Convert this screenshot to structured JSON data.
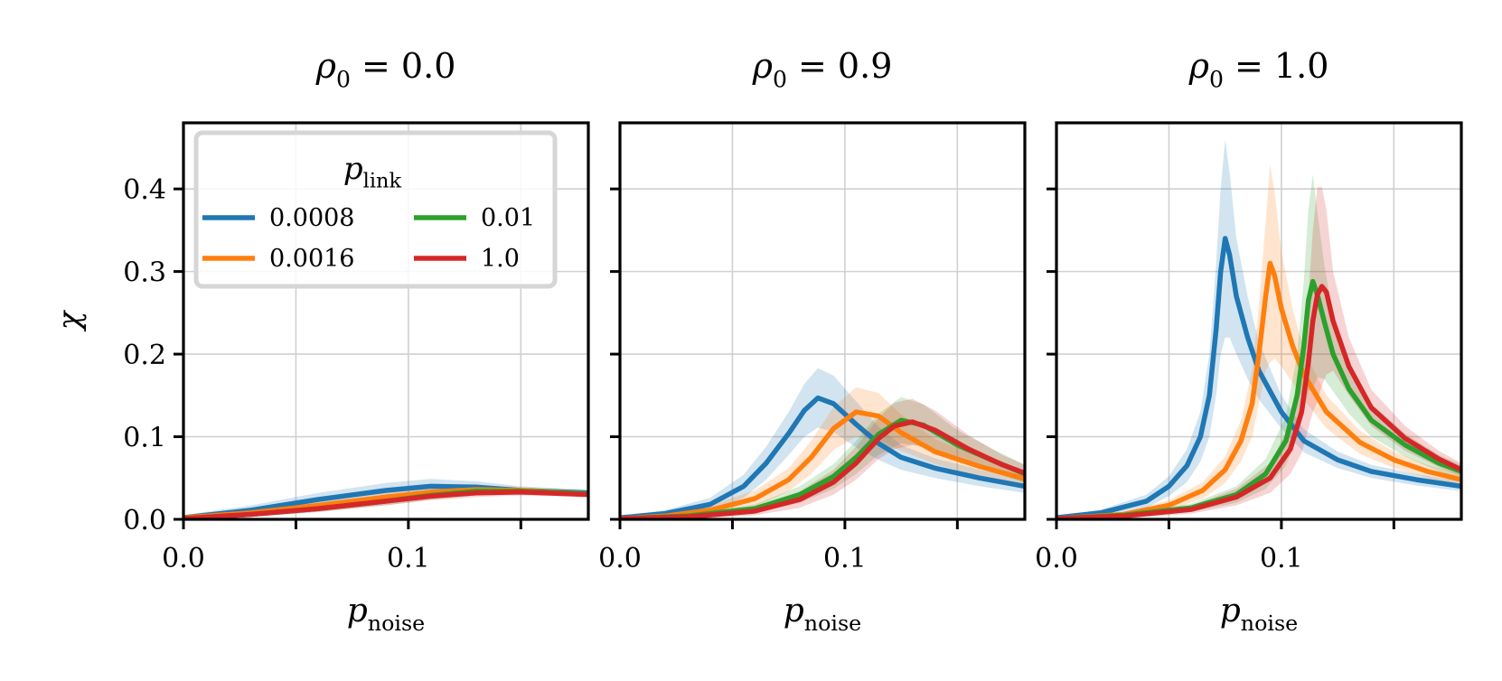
{
  "chart_data": [
    {
      "type": "line",
      "title": "ρ0 = 0.0",
      "title_parts": {
        "var": "ρ",
        "sub": "0",
        "rest": " = 0.0"
      },
      "xlabel": {
        "var": "p",
        "sub": "noise"
      },
      "ylabel": "χ",
      "xlim": [
        0.0,
        0.18
      ],
      "ylim": [
        0.0,
        0.48
      ],
      "xticks": [
        0.0,
        0.05,
        0.1,
        0.15
      ],
      "xtick_labels": [
        "0.0",
        "",
        "0.1",
        ""
      ],
      "yticks": [
        0.0,
        0.1,
        0.2,
        0.3,
        0.4
      ],
      "ytick_labels": [
        "0.0",
        "0.1",
        "0.2",
        "0.3",
        "0.4"
      ],
      "grid": true,
      "legend": "top-left",
      "series": [
        {
          "name": "0.0008",
          "x": [
            0.0,
            0.03,
            0.06,
            0.09,
            0.11,
            0.13,
            0.15,
            0.18
          ],
          "y": [
            0.002,
            0.011,
            0.024,
            0.035,
            0.04,
            0.039,
            0.035,
            0.032
          ],
          "band": [
            0.003,
            0.006,
            0.008,
            0.009,
            0.009,
            0.007,
            0.005,
            0.004
          ]
        },
        {
          "name": "0.0016",
          "x": [
            0.0,
            0.03,
            0.06,
            0.09,
            0.11,
            0.13,
            0.15,
            0.18
          ],
          "y": [
            0.002,
            0.008,
            0.017,
            0.027,
            0.033,
            0.036,
            0.035,
            0.031
          ],
          "band": [
            0.002,
            0.004,
            0.005,
            0.006,
            0.006,
            0.005,
            0.004,
            0.003
          ]
        },
        {
          "name": "0.01",
          "x": [
            0.0,
            0.03,
            0.06,
            0.09,
            0.11,
            0.13,
            0.15,
            0.18
          ],
          "y": [
            0.001,
            0.006,
            0.013,
            0.022,
            0.029,
            0.034,
            0.034,
            0.031
          ],
          "band": [
            0.002,
            0.003,
            0.004,
            0.005,
            0.005,
            0.005,
            0.004,
            0.003
          ]
        },
        {
          "name": "1.0",
          "x": [
            0.0,
            0.03,
            0.06,
            0.09,
            0.11,
            0.13,
            0.15,
            0.18
          ],
          "y": [
            0.001,
            0.006,
            0.013,
            0.022,
            0.028,
            0.032,
            0.033,
            0.03
          ],
          "band": [
            0.002,
            0.003,
            0.004,
            0.005,
            0.005,
            0.005,
            0.004,
            0.003
          ]
        }
      ]
    },
    {
      "type": "line",
      "title": "ρ0 = 0.9",
      "title_parts": {
        "var": "ρ",
        "sub": "0",
        "rest": " = 0.9"
      },
      "xlabel": {
        "var": "p",
        "sub": "noise"
      },
      "ylabel": "",
      "xlim": [
        0.0,
        0.18
      ],
      "ylim": [
        0.0,
        0.48
      ],
      "xticks": [
        0.0,
        0.05,
        0.1,
        0.15
      ],
      "xtick_labels": [
        "0.0",
        "",
        "0.1",
        ""
      ],
      "yticks": [
        0.0,
        0.1,
        0.2,
        0.3,
        0.4
      ],
      "ytick_labels": [
        "",
        "",
        "",
        "",
        ""
      ],
      "grid": true,
      "series": [
        {
          "name": "0.0008",
          "x": [
            0.0,
            0.02,
            0.04,
            0.055,
            0.065,
            0.075,
            0.082,
            0.088,
            0.095,
            0.105,
            0.115,
            0.125,
            0.14,
            0.16,
            0.18
          ],
          "y": [
            0.002,
            0.007,
            0.018,
            0.04,
            0.068,
            0.104,
            0.132,
            0.147,
            0.14,
            0.115,
            0.092,
            0.075,
            0.062,
            0.05,
            0.04
          ],
          "band": [
            0.002,
            0.004,
            0.008,
            0.014,
            0.02,
            0.026,
            0.032,
            0.036,
            0.034,
            0.028,
            0.02,
            0.015,
            0.012,
            0.01,
            0.008
          ]
        },
        {
          "name": "0.0016",
          "x": [
            0.0,
            0.02,
            0.04,
            0.06,
            0.075,
            0.085,
            0.095,
            0.105,
            0.115,
            0.125,
            0.14,
            0.16,
            0.18
          ],
          "y": [
            0.001,
            0.004,
            0.011,
            0.025,
            0.048,
            0.075,
            0.11,
            0.13,
            0.125,
            0.105,
            0.082,
            0.064,
            0.049
          ],
          "band": [
            0.002,
            0.003,
            0.006,
            0.01,
            0.014,
            0.02,
            0.026,
            0.03,
            0.028,
            0.022,
            0.015,
            0.012,
            0.01
          ]
        },
        {
          "name": "0.01",
          "x": [
            0.0,
            0.03,
            0.06,
            0.08,
            0.095,
            0.105,
            0.115,
            0.125,
            0.135,
            0.15,
            0.165,
            0.18
          ],
          "y": [
            0.001,
            0.004,
            0.013,
            0.03,
            0.052,
            0.075,
            0.103,
            0.12,
            0.114,
            0.09,
            0.072,
            0.055
          ],
          "band": [
            0.002,
            0.003,
            0.005,
            0.01,
            0.015,
            0.02,
            0.025,
            0.028,
            0.025,
            0.018,
            0.014,
            0.011
          ]
        },
        {
          "name": "1.0",
          "x": [
            0.0,
            0.03,
            0.06,
            0.08,
            0.095,
            0.105,
            0.115,
            0.122,
            0.13,
            0.14,
            0.155,
            0.17,
            0.18
          ],
          "y": [
            0.001,
            0.003,
            0.01,
            0.024,
            0.045,
            0.068,
            0.098,
            0.113,
            0.118,
            0.108,
            0.085,
            0.066,
            0.056
          ],
          "band": [
            0.002,
            0.003,
            0.005,
            0.01,
            0.015,
            0.02,
            0.025,
            0.028,
            0.028,
            0.024,
            0.017,
            0.012,
            0.01
          ]
        }
      ]
    },
    {
      "type": "line",
      "title": "ρ0 = 1.0",
      "title_parts": {
        "var": "ρ",
        "sub": "0",
        "rest": " = 1.0"
      },
      "xlabel": {
        "var": "p",
        "sub": "noise"
      },
      "ylabel": "",
      "xlim": [
        0.0,
        0.18
      ],
      "ylim": [
        0.0,
        0.48
      ],
      "xticks": [
        0.0,
        0.05,
        0.1,
        0.15
      ],
      "xtick_labels": [
        "0.0",
        "",
        "0.1",
        ""
      ],
      "yticks": [
        0.0,
        0.1,
        0.2,
        0.3,
        0.4
      ],
      "ytick_labels": [
        "",
        "",
        "",
        "",
        ""
      ],
      "grid": true,
      "series": [
        {
          "name": "0.0008",
          "x": [
            0.0,
            0.02,
            0.04,
            0.05,
            0.058,
            0.064,
            0.068,
            0.071,
            0.073,
            0.075,
            0.077,
            0.08,
            0.085,
            0.09,
            0.1,
            0.11,
            0.125,
            0.14,
            0.16,
            0.18
          ],
          "y": [
            0.002,
            0.008,
            0.022,
            0.04,
            0.065,
            0.1,
            0.15,
            0.23,
            0.3,
            0.34,
            0.32,
            0.27,
            0.22,
            0.18,
            0.13,
            0.095,
            0.072,
            0.058,
            0.048,
            0.04
          ],
          "band": [
            0.002,
            0.004,
            0.008,
            0.012,
            0.02,
            0.03,
            0.05,
            0.08,
            0.1,
            0.12,
            0.1,
            0.07,
            0.05,
            0.035,
            0.02,
            0.014,
            0.01,
            0.008,
            0.007,
            0.006
          ]
        },
        {
          "name": "0.0016",
          "x": [
            0.0,
            0.03,
            0.05,
            0.065,
            0.075,
            0.082,
            0.087,
            0.09,
            0.093,
            0.095,
            0.097,
            0.1,
            0.105,
            0.11,
            0.12,
            0.135,
            0.15,
            0.165,
            0.18
          ],
          "y": [
            0.001,
            0.006,
            0.017,
            0.035,
            0.06,
            0.095,
            0.14,
            0.2,
            0.27,
            0.31,
            0.295,
            0.255,
            0.21,
            0.175,
            0.13,
            0.093,
            0.072,
            0.058,
            0.048
          ],
          "band": [
            0.002,
            0.003,
            0.006,
            0.01,
            0.016,
            0.025,
            0.04,
            0.06,
            0.09,
            0.12,
            0.1,
            0.07,
            0.045,
            0.03,
            0.02,
            0.014,
            0.01,
            0.008,
            0.007
          ]
        },
        {
          "name": "0.01",
          "x": [
            0.0,
            0.03,
            0.06,
            0.08,
            0.093,
            0.102,
            0.107,
            0.11,
            0.112,
            0.114,
            0.116,
            0.119,
            0.123,
            0.13,
            0.14,
            0.155,
            0.17,
            0.18
          ],
          "y": [
            0.001,
            0.005,
            0.014,
            0.03,
            0.055,
            0.095,
            0.15,
            0.21,
            0.265,
            0.288,
            0.272,
            0.24,
            0.2,
            0.158,
            0.12,
            0.09,
            0.068,
            0.058
          ],
          "band": [
            0.002,
            0.003,
            0.005,
            0.01,
            0.018,
            0.03,
            0.05,
            0.08,
            0.11,
            0.13,
            0.1,
            0.07,
            0.045,
            0.03,
            0.02,
            0.014,
            0.01,
            0.008
          ]
        },
        {
          "name": "1.0",
          "x": [
            0.0,
            0.03,
            0.06,
            0.08,
            0.095,
            0.104,
            0.109,
            0.112,
            0.114,
            0.116,
            0.118,
            0.12,
            0.123,
            0.13,
            0.14,
            0.155,
            0.17,
            0.18
          ],
          "y": [
            0.001,
            0.004,
            0.012,
            0.027,
            0.05,
            0.085,
            0.13,
            0.19,
            0.24,
            0.272,
            0.282,
            0.275,
            0.24,
            0.185,
            0.135,
            0.098,
            0.073,
            0.06
          ],
          "band": [
            0.002,
            0.003,
            0.005,
            0.01,
            0.018,
            0.03,
            0.05,
            0.08,
            0.11,
            0.13,
            0.12,
            0.1,
            0.06,
            0.035,
            0.022,
            0.015,
            0.01,
            0.008
          ]
        }
      ]
    }
  ],
  "legend": {
    "title": {
      "var": "p",
      "sub": "link"
    },
    "entries": [
      {
        "label": "0.0008",
        "color": "#1f77b4"
      },
      {
        "label": "0.01",
        "color": "#2ca02c"
      },
      {
        "label": "0.0016",
        "color": "#ff7f0e"
      },
      {
        "label": "1.0",
        "color": "#d62728"
      }
    ]
  },
  "colors": {
    "0.0008": "#1f77b4",
    "0.0016": "#ff7f0e",
    "0.01": "#2ca02c",
    "1.0": "#d62728"
  }
}
